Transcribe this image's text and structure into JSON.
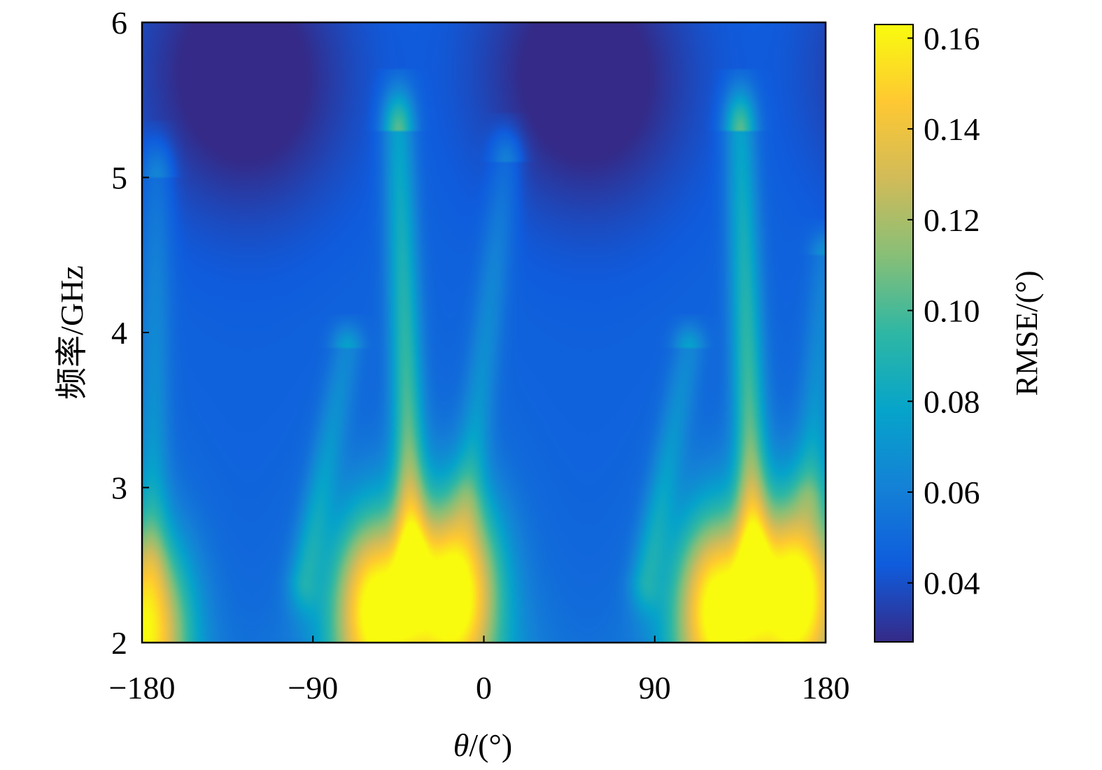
{
  "chart_data": {
    "type": "heatmap",
    "title": "",
    "xlabel": {
      "symbol": "θ",
      "unit": "/(°)"
    },
    "ylabel": "频率/GHz",
    "colorbar_label": "RMSE/(°)",
    "xlim": [
      -180,
      180
    ],
    "ylim": [
      2,
      6
    ],
    "clim": [
      0.027,
      0.163
    ],
    "x_ticks": [
      -180,
      -90,
      0,
      90,
      180
    ],
    "x_tick_labels": [
      "−180",
      "−90",
      "0",
      "90",
      "180"
    ],
    "y_ticks": [
      2,
      3,
      4,
      5,
      6
    ],
    "y_tick_labels": [
      "2",
      "3",
      "4",
      "5",
      "6"
    ],
    "colorbar_ticks": [
      0.04,
      0.06,
      0.08,
      0.1,
      0.12,
      0.14,
      0.16
    ],
    "colorbar_tick_labels": [
      "0.04",
      "0.06",
      "0.08",
      "0.10",
      "0.12",
      "0.14",
      "0.16"
    ],
    "colormap": "parula",
    "colormap_stops": [
      "#352a87",
      "#0f5cdd",
      "#1481d6",
      "#06a4ca",
      "#2eb7a4",
      "#87bf77",
      "#d1bb59",
      "#fec832",
      "#f9fb0e"
    ],
    "grid": false,
    "colorbar_position": "right",
    "period_deg": 180,
    "features": [
      {
        "kind": "background",
        "value": 0.046
      },
      {
        "kind": "peak",
        "x": -57,
        "y": 2.25,
        "value": 0.15
      },
      {
        "kind": "peak",
        "x": -15,
        "y": 2.35,
        "value": 0.158
      },
      {
        "kind": "peak",
        "x": 123,
        "y": 2.25,
        "value": 0.15
      },
      {
        "kind": "peak",
        "x": 165,
        "y": 2.35,
        "value": 0.158
      },
      {
        "kind": "peak",
        "x": -178,
        "y": 2.1,
        "value": 0.14
      },
      {
        "kind": "ridge",
        "x0": -38,
        "y0": 2.6,
        "x1": -45,
        "y1": 5.3,
        "value": 0.105
      },
      {
        "kind": "ridge",
        "x0": 142,
        "y0": 2.6,
        "x1": 135,
        "y1": 5.3,
        "value": 0.105
      },
      {
        "kind": "ridge",
        "x0": -8,
        "y0": 3.0,
        "x1": 12,
        "y1": 5.1,
        "value": 0.07
      },
      {
        "kind": "ridge",
        "x0": 172,
        "y0": 3.0,
        "x1": 180,
        "y1": 4.5,
        "value": 0.07
      },
      {
        "kind": "ridge",
        "x0": -95,
        "y0": 2.4,
        "x1": -72,
        "y1": 3.9,
        "value": 0.075
      },
      {
        "kind": "ridge",
        "x0": 85,
        "y0": 2.4,
        "x1": 108,
        "y1": 3.9,
        "value": 0.075
      },
      {
        "kind": "ridge",
        "x0": -175,
        "y0": 2.6,
        "x1": -172,
        "y1": 5.0,
        "value": 0.07
      },
      {
        "kind": "trough",
        "x": -140,
        "y": 5.7,
        "value": 0.032
      },
      {
        "kind": "trough",
        "x": 65,
        "y": 5.6,
        "value": 0.03
      }
    ]
  }
}
